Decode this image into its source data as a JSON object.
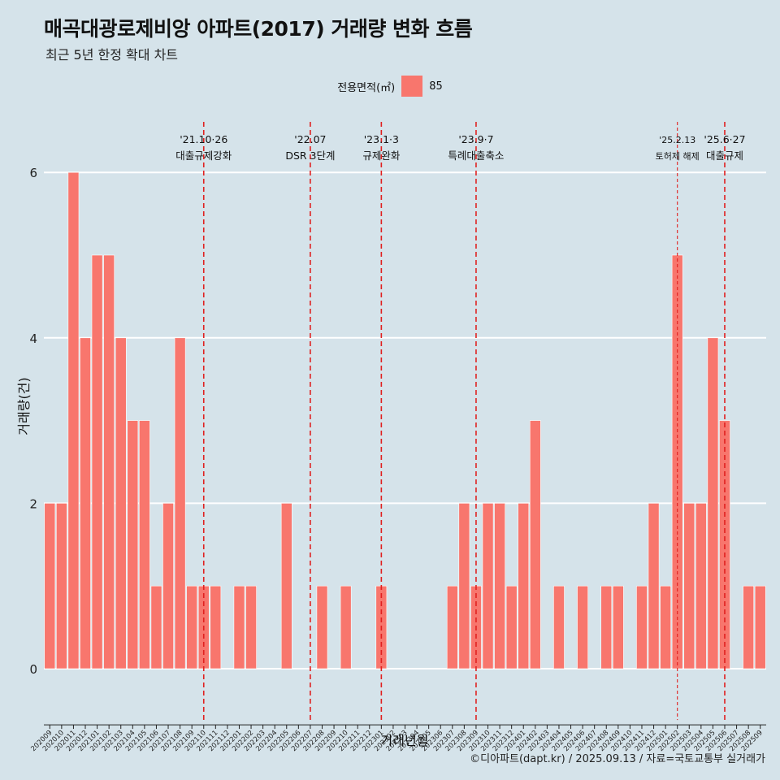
{
  "title": "매곡대광로제비앙 아파트(2017) 거래량 변화 흐름",
  "subtitle": "최근 5년 한정 확대 차트",
  "legend": {
    "title": "전용면적(㎡)",
    "label": "85",
    "color": "#f8766d"
  },
  "caption": "©디아파트(dapt.kr) / 2025.09.13 / 자료=국토교통부 실거래가",
  "chart_data": {
    "type": "bar",
    "xlabel": "거래년월",
    "ylabel": "거래량(건)",
    "ylim": [
      -0.6,
      6.5
    ],
    "yticks": [
      0,
      2,
      4,
      6
    ],
    "grid": true,
    "legend_position": "top",
    "bar_color": "#f8766d",
    "categories": [
      "202009",
      "202010",
      "202011",
      "202012",
      "202101",
      "202102",
      "202103",
      "202104",
      "202105",
      "202106",
      "202107",
      "202108",
      "202109",
      "202110",
      "202111",
      "202112",
      "202201",
      "202202",
      "202203",
      "202204",
      "202205",
      "202206",
      "202207",
      "202208",
      "202209",
      "202210",
      "202211",
      "202212",
      "202301",
      "202302",
      "202303",
      "202304",
      "202305",
      "202306",
      "202307",
      "202308",
      "202309",
      "202310",
      "202311",
      "202312",
      "202401",
      "202402",
      "202403",
      "202404",
      "202405",
      "202406",
      "202407",
      "202408",
      "202409",
      "202410",
      "202411",
      "202412",
      "202501",
      "202502",
      "202503",
      "202504",
      "202505",
      "202506",
      "202507",
      "202508",
      "202509"
    ],
    "series": [
      {
        "values": [
          2,
          2,
          6,
          4,
          5,
          5,
          4,
          3,
          3,
          1,
          2,
          4,
          1,
          1,
          1,
          0,
          1,
          1,
          0,
          0,
          2,
          0,
          0,
          1,
          0,
          1,
          0,
          0,
          1,
          0,
          0,
          0,
          0,
          0,
          1,
          2,
          1,
          2,
          2,
          1,
          2,
          3,
          0,
          1,
          0,
          1,
          0,
          1,
          1,
          0,
          1,
          2,
          1,
          5,
          2,
          2,
          4,
          3,
          0,
          1,
          1
        ]
      }
    ],
    "annotations": [
      {
        "x": "202110",
        "date": "'21.10·26",
        "label": "대출규제강화",
        "color": "#e0201f",
        "style": "dashed"
      },
      {
        "x": "202207",
        "date": "'22.07",
        "label": "DSR 3단계",
        "color": "#e0201f",
        "style": "dashed"
      },
      {
        "x": "202301",
        "date": "'23.1·3",
        "label": "규제완화",
        "color": "#e0201f",
        "style": "dashed"
      },
      {
        "x": "202309",
        "date": "'23.9·7",
        "label": "특례대출축소",
        "color": "#e0201f",
        "style": "dashed"
      },
      {
        "x": "202502",
        "date": "'25.2.13",
        "label": "토허제 해제",
        "color": "#e0201f",
        "style": "dashed-thin"
      },
      {
        "x": "202506",
        "date": "'25.6·27",
        "label": "대출규제",
        "color": "#e0201f",
        "style": "dashed"
      }
    ]
  }
}
